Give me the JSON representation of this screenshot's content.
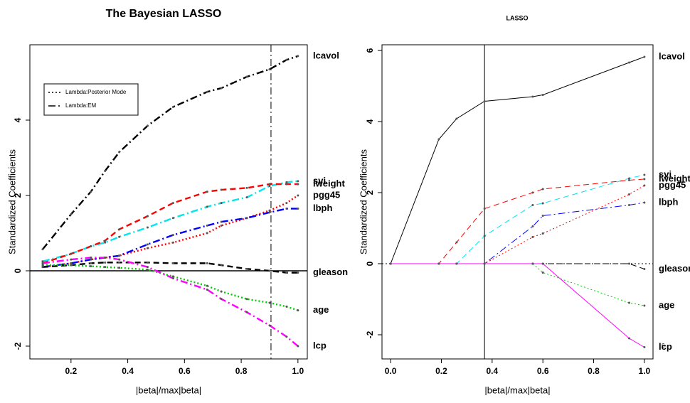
{
  "chart_data": [
    {
      "type": "line",
      "title": "The Bayesian LASSO",
      "xlabel": "|beta|/max|beta|",
      "ylabel": "Standardized Coefficients",
      "xlim": [
        0.055,
        1.033
      ],
      "ylim": [
        -2.34,
        6.0
      ],
      "xticks": [
        0.2,
        0.4,
        0.6,
        0.8,
        {
          "value": 1,
          "label": "1.0"
        }
      ],
      "yticks": [
        -2,
        0,
        2,
        4
      ],
      "vline": 0.905,
      "vline_style": "dotdash",
      "hline": 0,
      "hline_style": "solid",
      "legend_entries": [
        {
          "label": "Lambda:Posterior Mode",
          "linestyle": "dotted"
        },
        {
          "label": "Lambda:EM",
          "linestyle": "dotdash"
        }
      ],
      "x": [
        0.1,
        0.2,
        0.27,
        0.32,
        0.37,
        0.47,
        0.56,
        0.68,
        0.73,
        0.82,
        0.9,
        0.96,
        1.0
      ],
      "series": [
        {
          "name": "lcavol",
          "color": "#000000",
          "linestyle": "dotdash",
          "values": [
            0.57,
            1.5,
            2.1,
            2.65,
            3.15,
            3.85,
            4.35,
            4.75,
            4.85,
            5.15,
            5.35,
            5.6,
            5.7
          ]
        },
        {
          "name": "svi",
          "color": "#00e5ee",
          "linestyle": "dotdash",
          "values": [
            0.25,
            0.45,
            0.65,
            0.75,
            0.9,
            1.15,
            1.4,
            1.7,
            1.8,
            1.95,
            2.25,
            2.35,
            2.38
          ]
        },
        {
          "name": "lweight",
          "color": "#ff0000",
          "linestyle": "dashed",
          "values": [
            0.2,
            0.45,
            0.65,
            0.8,
            1.1,
            1.45,
            1.8,
            2.1,
            2.15,
            2.2,
            2.3,
            2.3,
            2.3
          ]
        },
        {
          "name": "pgg45",
          "color": "#ff0000",
          "linestyle": "dotted",
          "values": [
            0.1,
            0.2,
            0.3,
            0.35,
            0.4,
            0.6,
            0.75,
            1.0,
            1.2,
            1.4,
            1.6,
            1.8,
            2.0
          ]
        },
        {
          "name": "lbph",
          "color": "#0000ff",
          "linestyle": "dotdash",
          "values": [
            0.1,
            0.2,
            0.3,
            0.35,
            0.4,
            0.7,
            0.95,
            1.2,
            1.3,
            1.4,
            1.55,
            1.65,
            1.65
          ]
        },
        {
          "name": "gleason",
          "color": "#000000",
          "linestyle": "dashed",
          "values": [
            0.1,
            0.15,
            0.2,
            0.22,
            0.22,
            0.22,
            0.2,
            0.2,
            0.15,
            0.05,
            0.0,
            -0.05,
            -0.05
          ]
        },
        {
          "name": "age",
          "color": "#00cc00",
          "linestyle": "dotted",
          "values": [
            0.15,
            0.15,
            0.12,
            0.1,
            0.08,
            0.03,
            -0.15,
            -0.4,
            -0.55,
            -0.75,
            -0.85,
            -0.95,
            -1.05
          ]
        },
        {
          "name": "lcp",
          "color": "#ff00ff",
          "linestyle": "dotdash",
          "values": [
            0.2,
            0.3,
            0.35,
            0.35,
            0.3,
            0.1,
            -0.2,
            -0.5,
            -0.75,
            -1.1,
            -1.45,
            -1.75,
            -2.0
          ]
        }
      ]
    },
    {
      "type": "line",
      "title": "LASSO",
      "xlabel": "|beta|/max|beta|",
      "ylabel": "Standardized Coefficients",
      "xlim": [
        -0.034,
        1.034
      ],
      "ylim": [
        -2.68,
        6.16
      ],
      "xticks": [
        {
          "value": 0,
          "label": "0.0"
        },
        0.2,
        0.4,
        0.6,
        0.8,
        {
          "value": 1,
          "label": "1.0"
        }
      ],
      "yticks": [
        -2,
        0,
        2,
        4,
        6
      ],
      "vline": 0.37,
      "vline_style": "solid",
      "hline": 0,
      "hline_style": "dotted",
      "annotation": "6",
      "x": [
        0,
        0.19,
        0.26,
        0.37,
        0.56,
        0.6,
        0.94,
        1.0
      ],
      "series": [
        {
          "name": "lcavol",
          "color": "#000000",
          "linestyle": "solid",
          "values": [
            0,
            3.5,
            4.08,
            4.57,
            4.7,
            4.75,
            5.66,
            5.82
          ]
        },
        {
          "name": "svi",
          "color": "#00e5ee",
          "linestyle": "dashed",
          "values": [
            0,
            0,
            0,
            0.78,
            1.65,
            1.7,
            2.4,
            2.5
          ]
        },
        {
          "name": "lweight",
          "color": "#ff0000",
          "linestyle": "dashed",
          "values": [
            0,
            0,
            0.6,
            1.55,
            2.0,
            2.1,
            2.35,
            2.38
          ]
        },
        {
          "name": "pgg45",
          "color": "#ff0000",
          "linestyle": "dotted",
          "values": [
            0,
            0,
            0,
            0,
            0.75,
            0.85,
            1.95,
            2.2
          ]
        },
        {
          "name": "lbph",
          "color": "#0000ff",
          "linestyle": "dotdash",
          "values": [
            0,
            0,
            0,
            0,
            1.05,
            1.35,
            1.65,
            1.72
          ]
        },
        {
          "name": "gleason",
          "color": "#000000",
          "linestyle": "dashed",
          "values": [
            0,
            0,
            0,
            0,
            0,
            0,
            0,
            -0.15
          ]
        },
        {
          "name": "age",
          "color": "#00cc00",
          "linestyle": "dotted",
          "values": [
            0,
            0,
            0,
            0,
            0,
            -0.25,
            -1.1,
            -1.18
          ]
        },
        {
          "name": "lcp",
          "color": "#ff00ff",
          "linestyle": "solid",
          "values": [
            0,
            0,
            0,
            0,
            0,
            0,
            -2.1,
            -2.35
          ]
        }
      ]
    }
  ]
}
